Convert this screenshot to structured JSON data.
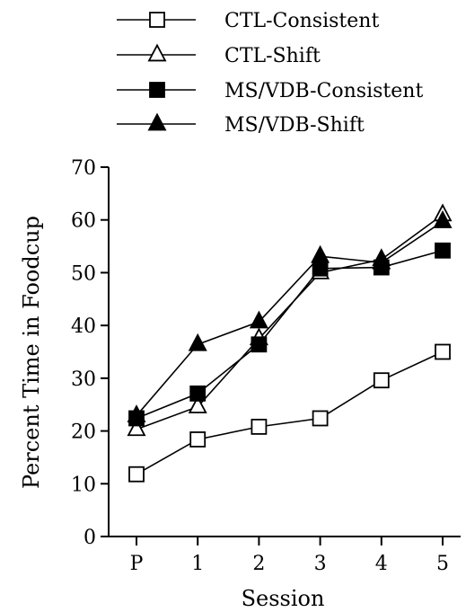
{
  "chart_data": {
    "type": "line",
    "title": "",
    "xlabel": "Session",
    "ylabel": "Percent Time in Foodcup",
    "categories": [
      "P",
      "1",
      "2",
      "3",
      "4",
      "5"
    ],
    "ylim": [
      0,
      70
    ],
    "yticks": [
      0,
      10,
      20,
      30,
      40,
      50,
      60,
      70
    ],
    "grid": false,
    "legend_position": "top",
    "series": [
      {
        "name": "CTL-Consistent",
        "marker": "square-open",
        "values": [
          11.8,
          18.4,
          20.8,
          22.4,
          29.6,
          35.0
        ]
      },
      {
        "name": "CTL-Shift",
        "marker": "triangle-open",
        "values": [
          20.3,
          24.6,
          37.5,
          50.0,
          52.5,
          61.0
        ]
      },
      {
        "name": "MS/VDB-Consistent",
        "marker": "square-filled",
        "values": [
          22.4,
          27.1,
          36.4,
          50.8,
          51.0,
          54.2
        ]
      },
      {
        "name": "MS/VDB-Shift",
        "marker": "triangle-filled",
        "values": [
          22.9,
          36.4,
          40.7,
          53.1,
          51.9,
          59.7
        ]
      }
    ]
  }
}
